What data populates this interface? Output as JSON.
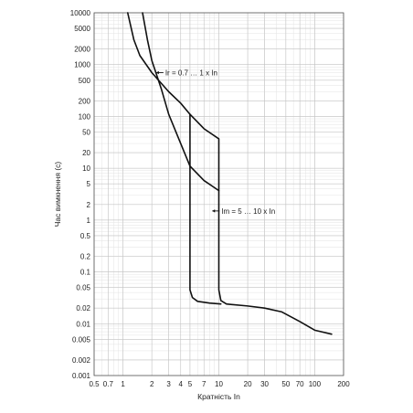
{
  "chart_data": {
    "type": "line",
    "title": "",
    "xlabel": "Кратність In",
    "ylabel": "Час вимкнення (с)",
    "x_scale": "log",
    "y_scale": "log",
    "xlim": [
      0.5,
      200
    ],
    "ylim": [
      0.001,
      10000
    ],
    "grid": true,
    "x_ticks": [
      {
        "v": 0.5,
        "label": "0.5"
      },
      {
        "v": 0.7,
        "label": "0.7"
      },
      {
        "v": 1,
        "label": "1"
      },
      {
        "v": 2,
        "label": "2"
      },
      {
        "v": 3,
        "label": "3"
      },
      {
        "v": 4,
        "label": "4"
      },
      {
        "v": 5,
        "label": "5"
      },
      {
        "v": 7,
        "label": "7"
      },
      {
        "v": 10,
        "label": "10"
      },
      {
        "v": 20,
        "label": "20"
      },
      {
        "v": 30,
        "label": "30"
      },
      {
        "v": 50,
        "label": "50"
      },
      {
        "v": 70,
        "label": "70"
      },
      {
        "v": 100,
        "label": "100"
      },
      {
        "v": 200,
        "label": "200"
      }
    ],
    "y_ticks": [
      {
        "v": 10000,
        "label": "10000"
      },
      {
        "v": 5000,
        "label": "5000"
      },
      {
        "v": 2000,
        "label": "2000"
      },
      {
        "v": 1000,
        "label": "1000"
      },
      {
        "v": 500,
        "label": "500"
      },
      {
        "v": 200,
        "label": "200"
      },
      {
        "v": 100,
        "label": "100"
      },
      {
        "v": 50,
        "label": "50"
      },
      {
        "v": 20,
        "label": "20"
      },
      {
        "v": 10,
        "label": "10"
      },
      {
        "v": 5,
        "label": "5"
      },
      {
        "v": 2,
        "label": "2"
      },
      {
        "v": 1,
        "label": "1"
      },
      {
        "v": 0.5,
        "label": "0.5"
      },
      {
        "v": 0.2,
        "label": "0.2"
      },
      {
        "v": 0.1,
        "label": "0.1"
      },
      {
        "v": 0.05,
        "label": "0.05"
      },
      {
        "v": 0.02,
        "label": "0.02"
      },
      {
        "v": 0.01,
        "label": "0.01"
      },
      {
        "v": 0.005,
        "label": "0.005"
      },
      {
        "v": 0.002,
        "label": "0.002"
      },
      {
        "v": 0.001,
        "label": "0.001"
      }
    ],
    "series": [
      {
        "id": "upper-curve",
        "points": [
          [
            1.12,
            10000
          ],
          [
            1.3,
            3000
          ],
          [
            1.5,
            1500
          ],
          [
            2,
            700
          ],
          [
            3,
            300
          ],
          [
            4,
            180
          ],
          [
            5,
            110
          ],
          [
            7,
            58
          ],
          [
            10,
            37
          ],
          [
            10,
            0.045
          ],
          [
            10.5,
            0.028
          ],
          [
            12,
            0.024
          ],
          [
            20,
            0.022
          ],
          [
            30,
            0.02
          ],
          [
            45,
            0.017
          ],
          [
            70,
            0.011
          ],
          [
            100,
            0.0075
          ],
          [
            150,
            0.0063
          ]
        ]
      },
      {
        "id": "lower-curve",
        "points": [
          [
            1.6,
            10000
          ],
          [
            1.8,
            3000
          ],
          [
            2,
            1200
          ],
          [
            2.5,
            350
          ],
          [
            3,
            110
          ],
          [
            4,
            30
          ],
          [
            5,
            11
          ],
          [
            7,
            5.8
          ],
          [
            10,
            3.7
          ]
        ]
      },
      {
        "id": "left-band-boundary",
        "points": [
          [
            5,
            110
          ],
          [
            5,
            0.045
          ],
          [
            5.3,
            0.032
          ],
          [
            6,
            0.027
          ],
          [
            8,
            0.025
          ],
          [
            10.5,
            0.024
          ]
        ]
      }
    ],
    "annotations": [
      {
        "id": "ir",
        "text": "Ir = 0.7 … 1 x In",
        "x": 2.7,
        "y": 700
      },
      {
        "id": "im",
        "text": "Im = 5 … 10 x In",
        "x": 10.4,
        "y": 1.5
      }
    ]
  }
}
